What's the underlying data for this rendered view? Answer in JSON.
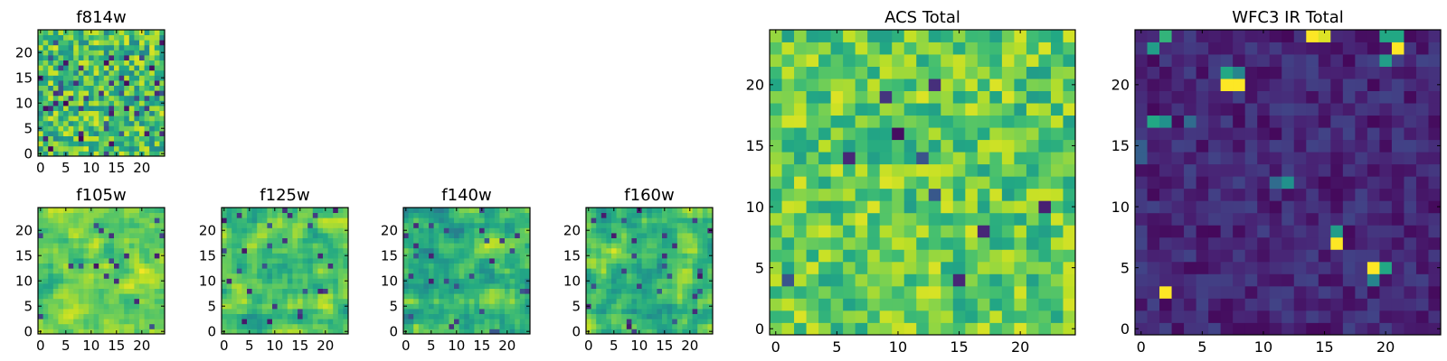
{
  "figure": {
    "panel_count": 7
  },
  "chart_data": [
    {
      "type": "heatmap",
      "title": "f814w",
      "grid_size": 25,
      "xlim": [
        -0.5,
        24.5
      ],
      "ylim": [
        -0.5,
        24.5
      ],
      "xticks": [
        0,
        5,
        10,
        15,
        20
      ],
      "yticks": [
        0,
        5,
        10,
        15,
        20
      ],
      "xlabel": "",
      "ylabel": "",
      "colormap": "viridis",
      "value_range": [
        0,
        1
      ],
      "pattern": "pixel-scale noise, mostly green-yellow with scattered dark blue/purple pixels"
    },
    {
      "type": "heatmap",
      "title": "f105w",
      "grid_size": 25,
      "xlim": [
        -0.5,
        24.5
      ],
      "ylim": [
        -0.5,
        24.5
      ],
      "xticks": [
        0,
        5,
        10,
        15,
        20
      ],
      "yticks": [
        0,
        5,
        10,
        15,
        20
      ],
      "xlabel": "",
      "ylabel": "",
      "colormap": "viridis",
      "value_range": [
        0,
        1
      ],
      "pattern": "smooth blobs, mostly yellow-green with a few dark spots"
    },
    {
      "type": "heatmap",
      "title": "f125w",
      "grid_size": 25,
      "xlim": [
        -0.5,
        24.5
      ],
      "ylim": [
        -0.5,
        24.5
      ],
      "xticks": [
        0,
        5,
        10,
        15,
        20
      ],
      "yticks": [
        0,
        5,
        10,
        15,
        20
      ],
      "xlabel": "",
      "ylabel": "",
      "colormap": "viridis",
      "value_range": [
        0,
        1
      ],
      "pattern": "smooth blobs, yellow-green with teal patches and dark spots"
    },
    {
      "type": "heatmap",
      "title": "f140w",
      "grid_size": 25,
      "xlim": [
        -0.5,
        24.5
      ],
      "ylim": [
        -0.5,
        24.5
      ],
      "xticks": [
        0,
        5,
        10,
        15,
        20
      ],
      "yticks": [
        0,
        5,
        10,
        15,
        20
      ],
      "xlabel": "",
      "ylabel": "",
      "colormap": "viridis",
      "value_range": [
        0,
        1
      ],
      "pattern": "smooth blobs, green-teal with yellow patches and dark spots"
    },
    {
      "type": "heatmap",
      "title": "f160w",
      "grid_size": 25,
      "xlim": [
        -0.5,
        24.5
      ],
      "ylim": [
        -0.5,
        24.5
      ],
      "xticks": [
        0,
        5,
        10,
        15,
        20
      ],
      "yticks": [
        0,
        5,
        10,
        15,
        20
      ],
      "xlabel": "",
      "ylabel": "",
      "colormap": "viridis",
      "value_range": [
        0,
        1
      ],
      "pattern": "smooth blobs, green-teal with yellow patches and dark spots"
    },
    {
      "type": "heatmap",
      "title": "ACS Total",
      "grid_size": 25,
      "xlim": [
        -0.5,
        24.5
      ],
      "ylim": [
        -0.5,
        24.5
      ],
      "xticks": [
        0,
        5,
        10,
        15,
        20
      ],
      "yticks": [
        0,
        5,
        10,
        15,
        20
      ],
      "xlabel": "",
      "ylabel": "",
      "colormap": "viridis",
      "value_range": [
        0,
        1
      ],
      "pattern": "pixel-scale noise, mostly yellow-green with teal and a few dark pixels"
    },
    {
      "type": "heatmap",
      "title": "WFC3 IR Total",
      "grid_size": 25,
      "xlim": [
        -0.5,
        24.5
      ],
      "ylim": [
        -0.5,
        24.5
      ],
      "xticks": [
        0,
        5,
        10,
        15,
        20
      ],
      "yticks": [
        0,
        5,
        10,
        15,
        20
      ],
      "xlabel": "",
      "ylabel": "",
      "colormap": "viridis",
      "value_range": [
        0,
        1
      ],
      "pattern": "dark purple background with a few bright yellow/green hot pixels",
      "hotspots": [
        {
          "x": 2,
          "y": 24,
          "value": 0.65
        },
        {
          "x": 1,
          "y": 23,
          "value": 0.55
        },
        {
          "x": 14,
          "y": 24,
          "value": 1.0
        },
        {
          "x": 15,
          "y": 24,
          "value": 0.95
        },
        {
          "x": 21,
          "y": 23,
          "value": 1.0
        },
        {
          "x": 20,
          "y": 24,
          "value": 0.6
        },
        {
          "x": 20,
          "y": 22,
          "value": 0.55
        },
        {
          "x": 21,
          "y": 24,
          "value": 0.6
        },
        {
          "x": 7,
          "y": 20,
          "value": 1.0
        },
        {
          "x": 8,
          "y": 20,
          "value": 1.0
        },
        {
          "x": 7,
          "y": 21,
          "value": 0.6
        },
        {
          "x": 8,
          "y": 21,
          "value": 0.45
        },
        {
          "x": 1,
          "y": 17,
          "value": 0.6
        },
        {
          "x": 2,
          "y": 17,
          "value": 0.5
        },
        {
          "x": 4,
          "y": 17,
          "value": 0.35
        },
        {
          "x": 12,
          "y": 12,
          "value": 0.5
        },
        {
          "x": 11,
          "y": 12,
          "value": 0.35
        },
        {
          "x": 16,
          "y": 7,
          "value": 1.0
        },
        {
          "x": 16,
          "y": 8,
          "value": 0.55
        },
        {
          "x": 19,
          "y": 5,
          "value": 1.0
        },
        {
          "x": 20,
          "y": 5,
          "value": 0.6
        },
        {
          "x": 19,
          "y": 4,
          "value": 0.45
        },
        {
          "x": 2,
          "y": 3,
          "value": 1.0
        },
        {
          "x": 0,
          "y": 15,
          "value": 0.3
        },
        {
          "x": 0,
          "y": 14,
          "value": 0.3
        }
      ]
    }
  ]
}
